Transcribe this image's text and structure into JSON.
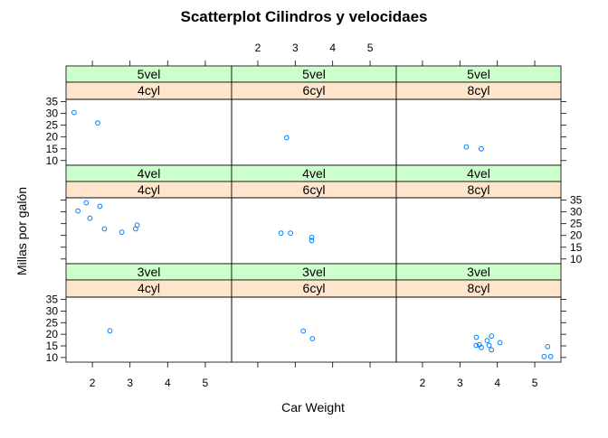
{
  "chart_data": {
    "type": "scatter",
    "title": "Scatterplot Cilindros y velocidaes",
    "xlabel": "Car Weight",
    "ylabel": "Millas por galón",
    "xlim": [
      1.3,
      5.7
    ],
    "ylim": [
      8,
      36
    ],
    "x_ticks": [
      2,
      3,
      4,
      5
    ],
    "y_ticks": [
      10,
      15,
      20,
      25,
      30,
      35
    ],
    "colors": {
      "point": "#0080ff",
      "gear_strip": "#ccffcc",
      "cyl_strip": "#ffe5cc",
      "border": "#000000"
    },
    "rows": [
      {
        "gear_label": "5vel",
        "panels": [
          {
            "cyl_label": "4cyl",
            "points": [
              [
                1.513,
                30.4
              ],
              [
                2.14,
                26.0
              ]
            ]
          },
          {
            "cyl_label": "6cyl",
            "points": [
              [
                2.77,
                19.7
              ]
            ]
          },
          {
            "cyl_label": "8cyl",
            "points": [
              [
                3.17,
                15.8
              ],
              [
                3.57,
                15.0
              ]
            ]
          }
        ]
      },
      {
        "gear_label": "4vel",
        "panels": [
          {
            "cyl_label": "4cyl",
            "points": [
              [
                2.32,
                22.8
              ],
              [
                3.19,
                24.4
              ],
              [
                3.15,
                22.8
              ],
              [
                2.2,
                32.4
              ],
              [
                1.615,
                30.4
              ],
              [
                1.835,
                33.9
              ],
              [
                1.935,
                27.3
              ],
              [
                2.78,
                21.4
              ]
            ]
          },
          {
            "cyl_label": "6cyl",
            "points": [
              [
                2.62,
                21.0
              ],
              [
                2.875,
                21.0
              ],
              [
                3.44,
                19.2
              ],
              [
                3.44,
                17.8
              ]
            ]
          },
          {
            "cyl_label": "8cyl",
            "points": []
          }
        ]
      },
      {
        "gear_label": "3vel",
        "panels": [
          {
            "cyl_label": "4cyl",
            "points": [
              [
                2.465,
                21.5
              ]
            ]
          },
          {
            "cyl_label": "6cyl",
            "points": [
              [
                3.215,
                21.4
              ],
              [
                3.46,
                18.1
              ]
            ]
          },
          {
            "cyl_label": "8cyl",
            "points": [
              [
                3.44,
                18.7
              ],
              [
                3.57,
                14.3
              ],
              [
                4.07,
                16.4
              ],
              [
                3.73,
                17.3
              ],
              [
                3.78,
                15.2
              ],
              [
                5.25,
                10.4
              ],
              [
                5.424,
                10.4
              ],
              [
                5.345,
                14.7
              ],
              [
                3.52,
                15.5
              ],
              [
                3.435,
                15.2
              ],
              [
                3.84,
                13.3
              ],
              [
                3.845,
                19.2
              ]
            ]
          }
        ]
      }
    ]
  }
}
